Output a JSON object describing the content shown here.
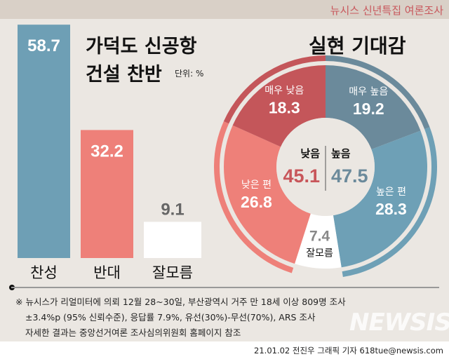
{
  "header": "뉴시스 신년특집 여론조사",
  "chart_data": [
    {
      "type": "bar",
      "title": "가덕도 신공항 건설 찬반",
      "title_line1": "가덕도 신공항",
      "title_line2": "건설 찬반",
      "unit": "단위: %",
      "categories": [
        "찬성",
        "반대",
        "잘모름"
      ],
      "values": [
        58.7,
        32.2,
        9.1
      ],
      "value_labels": [
        "58.7",
        "32.2",
        "9.1"
      ],
      "colors": [
        "#6e9fb5",
        "#ee8079",
        "#ffffff"
      ]
    },
    {
      "type": "pie",
      "title": "실현 기대감",
      "categories": [
        "매우 높음",
        "높은 편",
        "잘모름",
        "낮은 편",
        "매우 낮음"
      ],
      "values": [
        19.2,
        28.3,
        7.4,
        26.8,
        18.3
      ],
      "value_labels": [
        "19.2",
        "28.3",
        "7.4",
        "26.8",
        "18.3"
      ],
      "colors": [
        "#6b8a9b",
        "#6ea0b6",
        "#ffffff",
        "#ee8079",
        "#c4565a"
      ],
      "groups": [
        {
          "name": "낮음",
          "value": "45.1",
          "color": "#c8565a"
        },
        {
          "name": "높음",
          "value": "47.5",
          "color": "#6b8a9b"
        }
      ]
    }
  ],
  "footnote": [
    "※ 뉴시스가 리얼미터에 의뢰 12월 28~30일, 부산광역시 거주 만 18세 이상 809명 조사",
    "±3.4%p (95% 신뢰수준), 응답률 7.9%, 유선(30%)-무선(70%), ARS 조사",
    "자세한 결과는 중앙선거여론 조사심의위원회 홈페이지 참조"
  ],
  "credit": "21.01.02 전진우 그래픽 기자 618tue@newsis.com",
  "logo": "NEWSIS"
}
